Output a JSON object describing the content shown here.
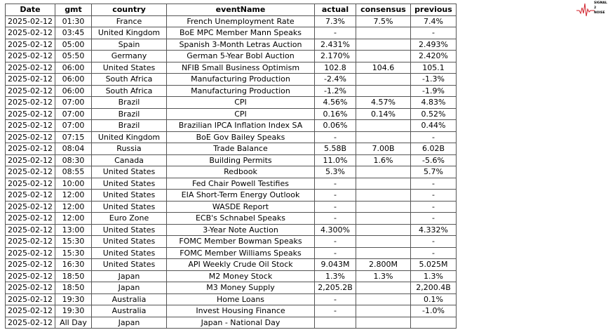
{
  "logo": {
    "text": "SIGNAL 2 NOISE",
    "color": "#d0202a"
  },
  "columns": [
    "Date",
    "gmt",
    "country",
    "eventName",
    "actual",
    "consensus",
    "previous"
  ],
  "rows": [
    [
      "2025-02-12",
      "01:30",
      "France",
      "French Unemployment Rate",
      "7.3%",
      "7.5%",
      "7.4%"
    ],
    [
      "2025-02-12",
      "03:45",
      "United Kingdom",
      "BoE MPC Member Mann Speaks",
      "-",
      "",
      "-"
    ],
    [
      "2025-02-12",
      "05:00",
      "Spain",
      "Spanish 3-Month Letras Auction",
      "2.431%",
      "",
      "2.493%"
    ],
    [
      "2025-02-12",
      "05:50",
      "Germany",
      "German 5-Year Bobl Auction",
      "2.170%",
      "",
      "2.420%"
    ],
    [
      "2025-02-12",
      "06:00",
      "United States",
      "NFIB Small Business Optimism",
      "102.8",
      "104.6",
      "105.1"
    ],
    [
      "2025-02-12",
      "06:00",
      "South Africa",
      "Manufacturing Production",
      "-2.4%",
      "",
      "-1.3%"
    ],
    [
      "2025-02-12",
      "06:00",
      "South Africa",
      "Manufacturing Production",
      "-1.2%",
      "",
      "-1.9%"
    ],
    [
      "2025-02-12",
      "07:00",
      "Brazil",
      "CPI",
      "4.56%",
      "4.57%",
      "4.83%"
    ],
    [
      "2025-02-12",
      "07:00",
      "Brazil",
      "CPI",
      "0.16%",
      "0.14%",
      "0.52%"
    ],
    [
      "2025-02-12",
      "07:00",
      "Brazil",
      "Brazilian IPCA Inflation Index SA",
      "0.06%",
      "",
      "0.44%"
    ],
    [
      "2025-02-12",
      "07:15",
      "United Kingdom",
      "BoE Gov Bailey Speaks",
      "-",
      "",
      "-"
    ],
    [
      "2025-02-12",
      "08:04",
      "Russia",
      "Trade Balance",
      "5.58B",
      "7.00B",
      "6.02B"
    ],
    [
      "2025-02-12",
      "08:30",
      "Canada",
      "Building Permits",
      "11.0%",
      "1.6%",
      "-5.6%"
    ],
    [
      "2025-02-12",
      "08:55",
      "United States",
      "Redbook",
      "5.3%",
      "",
      "5.7%"
    ],
    [
      "2025-02-12",
      "10:00",
      "United States",
      "Fed Chair Powell Testifies",
      "-",
      "",
      "-"
    ],
    [
      "2025-02-12",
      "12:00",
      "United States",
      "EIA Short-Term Energy Outlook",
      "-",
      "",
      "-"
    ],
    [
      "2025-02-12",
      "12:00",
      "United States",
      "WASDE Report",
      "-",
      "",
      "-"
    ],
    [
      "2025-02-12",
      "12:00",
      "Euro Zone",
      "ECB's Schnabel Speaks",
      "-",
      "",
      "-"
    ],
    [
      "2025-02-12",
      "13:00",
      "United States",
      "3-Year Note Auction",
      "4.300%",
      "",
      "4.332%"
    ],
    [
      "2025-02-12",
      "15:30",
      "United States",
      "FOMC Member Bowman Speaks",
      "-",
      "",
      "-"
    ],
    [
      "2025-02-12",
      "15:30",
      "United States",
      "FOMC Member Williams Speaks",
      "-",
      "",
      "-"
    ],
    [
      "2025-02-12",
      "16:30",
      "United States",
      "API Weekly Crude Oil Stock",
      "9.043M",
      "2.800M",
      "5.025M"
    ],
    [
      "2025-02-12",
      "18:50",
      "Japan",
      "M2 Money Stock",
      "1.3%",
      "1.3%",
      "1.3%"
    ],
    [
      "2025-02-12",
      "18:50",
      "Japan",
      "M3 Money Supply",
      "2,205.2B",
      "",
      "2,200.4B"
    ],
    [
      "2025-02-12",
      "19:30",
      "Australia",
      "Home Loans",
      "-",
      "",
      "0.1%"
    ],
    [
      "2025-02-12",
      "19:30",
      "Australia",
      "Invest Housing Finance",
      "-",
      "",
      "-1.0%"
    ],
    [
      "2025-02-12",
      "All Day",
      "Japan",
      "Japan - National Day",
      "",
      "",
      ""
    ]
  ]
}
